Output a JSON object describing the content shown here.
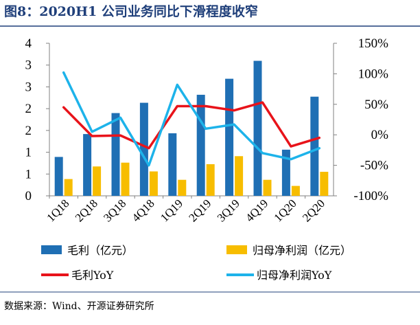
{
  "header": {
    "title": "图8：2020H1 公司业务同比下滑程度收窄"
  },
  "source": "数据来源：Wind、开源证券研究所",
  "colors": {
    "title": "#1f3f7a",
    "gross_profit_bar": "#1f6fb4",
    "net_profit_bar": "#f7bd00",
    "gross_profit_yoy": "#e8131a",
    "net_profit_yoy": "#1db3ea",
    "rule": "#1f3f7a"
  },
  "chart_data": {
    "type": "bar+line",
    "title": "图8：2020H1 公司业务同比下滑程度收窄",
    "categories": [
      "1Q18",
      "2Q18",
      "3Q18",
      "4Q18",
      "1Q19",
      "2Q19",
      "3Q19",
      "4Q19",
      "1Q20",
      "2Q20"
    ],
    "y_left": {
      "ylim": [
        0,
        4
      ],
      "tick_labels": [
        "4",
        "3",
        "3",
        "2",
        "2",
        "1",
        "1",
        "0"
      ]
    },
    "y_right": {
      "ylim": [
        -100,
        150
      ],
      "tick_labels": [
        "150%",
        "100%",
        "50%",
        "0%",
        "-50%",
        "-100%"
      ]
    },
    "series": [
      {
        "name": "毛利（亿元）",
        "type": "bar",
        "axis": "left",
        "color": "#1f6fb4",
        "values": [
          1.02,
          1.62,
          2.17,
          2.44,
          1.64,
          2.65,
          3.07,
          3.54,
          1.21,
          2.6
        ]
      },
      {
        "name": "归母净利润（亿元）",
        "type": "bar",
        "axis": "left",
        "color": "#f7bd00",
        "values": [
          0.44,
          0.77,
          0.87,
          0.64,
          0.42,
          0.83,
          1.04,
          0.42,
          0.26,
          0.63
        ]
      },
      {
        "name": "毛利YoY",
        "type": "line",
        "axis": "right",
        "color": "#e8131a",
        "values": [
          45,
          -2,
          -1,
          -22,
          47,
          47,
          40,
          53,
          -19,
          -5
        ]
      },
      {
        "name": "归母净利润YoY",
        "type": "line",
        "axis": "right",
        "color": "#1db3ea",
        "values": [
          102,
          5,
          28,
          -50,
          82,
          10,
          17,
          -30,
          -40,
          -22
        ]
      }
    ],
    "legend": {
      "position": "bottom",
      "items": [
        "毛利（亿元）",
        "归母净利润（亿元）",
        "毛利YoY",
        "归母净利润YoY"
      ]
    }
  }
}
